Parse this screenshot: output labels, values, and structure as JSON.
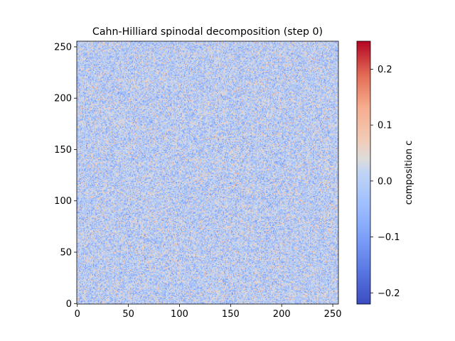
{
  "chart_data": {
    "type": "heatmap",
    "title": "Cahn-Hilliard spinodal decomposition (step 0)",
    "grid_size": [
      256,
      256
    ],
    "x_ticks": [
      0,
      50,
      100,
      150,
      200,
      250
    ],
    "y_ticks": [
      0,
      50,
      100,
      150,
      200,
      250
    ],
    "xlim": [
      0,
      255
    ],
    "ylim": [
      0,
      255
    ],
    "origin": "lower",
    "field_description": "random small fluctuations around 0",
    "colorbar": {
      "label": "composition c",
      "colormap": "coolwarm",
      "vmin": -0.22,
      "vmax": 0.25,
      "ticks": [
        -0.2,
        -0.1,
        0.0,
        0.1,
        0.2
      ],
      "tick_labels": [
        "−0.2",
        "−0.1",
        "0.0",
        "0.1",
        "0.2"
      ]
    },
    "colors": {
      "low": "#3b4cc0",
      "mid": "#dddddd",
      "high": "#b40426"
    },
    "grid": false
  }
}
